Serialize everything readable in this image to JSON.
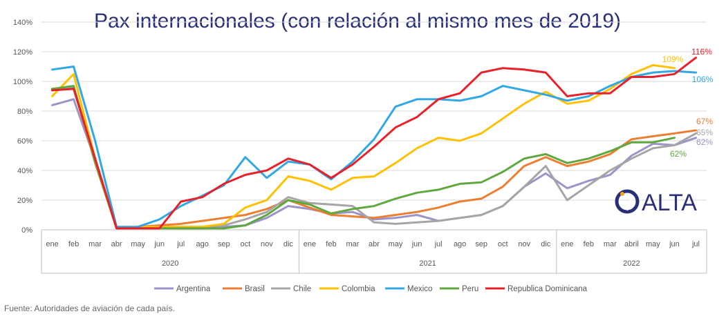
{
  "source": "Fuente: Autoridades de aviación de cada país.",
  "brand": {
    "name": "ALTA",
    "color": "#2a2f7a",
    "accent": "#f5a623",
    "logo_icon": "alta-swirl-logo-icon"
  },
  "chart_data": {
    "type": "line",
    "title": "Pax internacionales (con relación al mismo mes de 2019)",
    "title_color": "#2a2f7a",
    "ylim": [
      0,
      140
    ],
    "yticks": [
      "0%",
      "20%",
      "40%",
      "60%",
      "80%",
      "100%",
      "120%",
      "140%"
    ],
    "ytick_values": [
      0,
      20,
      40,
      60,
      80,
      100,
      120,
      140
    ],
    "grid": true,
    "legend_position": "bottom",
    "x": [
      "ene",
      "feb",
      "mar",
      "abr",
      "may",
      "jun",
      "jul",
      "ago",
      "sep",
      "oct",
      "nov",
      "dic",
      "ene",
      "feb",
      "mar",
      "abr",
      "may",
      "jun",
      "jul",
      "ago",
      "sep",
      "oct",
      "nov",
      "dic",
      "ene",
      "feb",
      "mar",
      "abril",
      "may",
      "jun",
      "jul"
    ],
    "year_groups": [
      {
        "label": "2020",
        "start": 0,
        "end": 11
      },
      {
        "label": "2021",
        "start": 12,
        "end": 23
      },
      {
        "label": "2022",
        "start": 24,
        "end": 30
      }
    ],
    "series": [
      {
        "name": "Argentina",
        "color": "#9b93c9",
        "values": [
          84,
          88,
          47,
          1,
          1,
          2,
          1,
          1,
          2,
          3,
          8,
          16,
          14,
          11,
          12,
          7,
          8,
          10,
          6,
          8,
          10,
          16,
          29,
          38,
          28,
          33,
          37,
          50,
          58,
          57,
          62
        ],
        "end_label": "62%",
        "end_label_color": "#9b93c9"
      },
      {
        "name": "Brasil",
        "color": "#ed7d31",
        "values": [
          94,
          96,
          45,
          1,
          2,
          3,
          4,
          6,
          8,
          10,
          14,
          20,
          15,
          10,
          9,
          8,
          10,
          12,
          15,
          19,
          21,
          29,
          43,
          49,
          43,
          46,
          51,
          61,
          63,
          65,
          67
        ],
        "end_label": "67%",
        "end_label_color": "#ed7d31"
      },
      {
        "name": "Chile",
        "color": "#a5a5a5",
        "values": [
          95,
          96,
          46,
          1,
          2,
          2,
          2,
          2,
          3,
          7,
          12,
          22,
          18,
          17,
          16,
          5,
          4,
          5,
          6,
          8,
          10,
          16,
          29,
          43,
          20,
          30,
          40,
          48,
          55,
          57,
          65
        ],
        "end_label": "65%",
        "end_label_color": "#a5a5a5"
      },
      {
        "name": "Colombia",
        "color": "#ffc000",
        "values": [
          90,
          105,
          48,
          1,
          2,
          2,
          2,
          2,
          4,
          15,
          20,
          36,
          33,
          27,
          35,
          36,
          45,
          55,
          62,
          60,
          65,
          75,
          85,
          93,
          85,
          87,
          95,
          105,
          111,
          109,
          null
        ],
        "end_label": "109%",
        "end_label_color": "#ffc000"
      },
      {
        "name": "Mexico",
        "color": "#31a7e6",
        "values": [
          108,
          110,
          60,
          2,
          2,
          7,
          16,
          23,
          30,
          49,
          35,
          46,
          44,
          34,
          46,
          61,
          83,
          88,
          88,
          87,
          90,
          97,
          94,
          91,
          87,
          90,
          97,
          103,
          106,
          107,
          106
        ],
        "end_label": "106%",
        "end_label_color": "#31a7e6"
      },
      {
        "name": "Peru",
        "color": "#5fa83f",
        "values": [
          95,
          97,
          46,
          1,
          1,
          1,
          1,
          1,
          1,
          3,
          10,
          20,
          17,
          11,
          14,
          16,
          21,
          25,
          27,
          31,
          32,
          39,
          48,
          51,
          45,
          48,
          53,
          59,
          59,
          62,
          null
        ],
        "end_label": "62%",
        "end_label_color": "#5fa83f"
      },
      {
        "name": "Republica Dominicana",
        "color": "#e8202a",
        "values": [
          94,
          95,
          48,
          1,
          1,
          1,
          19,
          22,
          31,
          37,
          40,
          48,
          44,
          35,
          44,
          56,
          69,
          76,
          88,
          92,
          106,
          109,
          108,
          106,
          90,
          92,
          92,
          103,
          103,
          105,
          116
        ],
        "end_label": "116%",
        "end_label_color": "#e8202a"
      }
    ]
  }
}
